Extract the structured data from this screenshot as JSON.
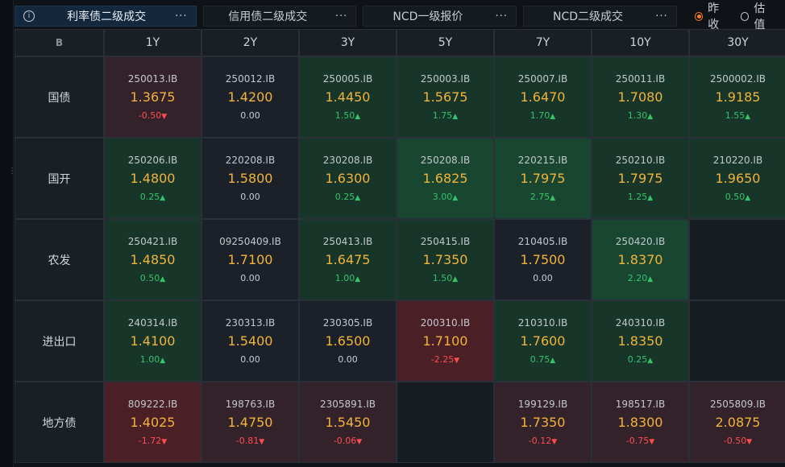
{
  "tabs": [
    {
      "label": "利率债二级成交",
      "active": true
    },
    {
      "label": "信用债二级成交",
      "active": false
    },
    {
      "label": "NCD一级报价",
      "active": false
    },
    {
      "label": "NCD二级成交",
      "active": false
    }
  ],
  "more_label": "···",
  "info_icon": "i",
  "radios": [
    {
      "label": "昨收",
      "checked": true
    },
    {
      "label": "估值",
      "checked": false
    }
  ],
  "corner_label": "B",
  "columns": [
    "1Y",
    "2Y",
    "3Y",
    "5Y",
    "7Y",
    "10Y",
    "30Y"
  ],
  "rows": [
    {
      "label": "国债",
      "cells": [
        {
          "code": "250013.IB",
          "rate": "1.3675",
          "change": "-0.50",
          "dir": "down",
          "shade": "r1"
        },
        {
          "code": "250012.IB",
          "rate": "1.4200",
          "change": "0.00",
          "dir": "flat",
          "shade": "neutral"
        },
        {
          "code": "250005.IB",
          "rate": "1.4450",
          "change": "1.50",
          "dir": "up",
          "shade": "g1"
        },
        {
          "code": "250003.IB",
          "rate": "1.5675",
          "change": "1.75",
          "dir": "up",
          "shade": "g1"
        },
        {
          "code": "250007.IB",
          "rate": "1.6470",
          "change": "1.70",
          "dir": "up",
          "shade": "g1"
        },
        {
          "code": "250011.IB",
          "rate": "1.7080",
          "change": "1.30",
          "dir": "up",
          "shade": "g1"
        },
        {
          "code": "2500002.IB",
          "rate": "1.9185",
          "change": "1.55",
          "dir": "up",
          "shade": "g1"
        }
      ]
    },
    {
      "label": "国开",
      "cells": [
        {
          "code": "250206.IB",
          "rate": "1.4800",
          "change": "0.25",
          "dir": "up",
          "shade": "g1"
        },
        {
          "code": "220208.IB",
          "rate": "1.5800",
          "change": "0.00",
          "dir": "flat",
          "shade": "neutral"
        },
        {
          "code": "230208.IB",
          "rate": "1.6300",
          "change": "0.25",
          "dir": "up",
          "shade": "g1"
        },
        {
          "code": "250208.IB",
          "rate": "1.6825",
          "change": "3.00",
          "dir": "up",
          "shade": "g2"
        },
        {
          "code": "220215.IB",
          "rate": "1.7975",
          "change": "2.75",
          "dir": "up",
          "shade": "g2"
        },
        {
          "code": "250210.IB",
          "rate": "1.7975",
          "change": "1.25",
          "dir": "up",
          "shade": "g1"
        },
        {
          "code": "210220.IB",
          "rate": "1.9650",
          "change": "0.50",
          "dir": "up",
          "shade": "g1"
        }
      ]
    },
    {
      "label": "农发",
      "cells": [
        {
          "code": "250421.IB",
          "rate": "1.4850",
          "change": "0.50",
          "dir": "up",
          "shade": "g1"
        },
        {
          "code": "09250409.IB",
          "rate": "1.7100",
          "change": "0.00",
          "dir": "flat",
          "shade": "neutral"
        },
        {
          "code": "250413.IB",
          "rate": "1.6475",
          "change": "1.00",
          "dir": "up",
          "shade": "g1"
        },
        {
          "code": "250415.IB",
          "rate": "1.7350",
          "change": "1.50",
          "dir": "up",
          "shade": "g1"
        },
        {
          "code": "210405.IB",
          "rate": "1.7500",
          "change": "0.00",
          "dir": "flat",
          "shade": "neutral"
        },
        {
          "code": "250420.IB",
          "rate": "1.8370",
          "change": "2.20",
          "dir": "up",
          "shade": "g2"
        },
        {
          "empty": true
        }
      ]
    },
    {
      "label": "进出口",
      "cells": [
        {
          "code": "240314.IB",
          "rate": "1.4100",
          "change": "1.00",
          "dir": "up",
          "shade": "g1"
        },
        {
          "code": "230313.IB",
          "rate": "1.5400",
          "change": "0.00",
          "dir": "flat",
          "shade": "neutral"
        },
        {
          "code": "230305.IB",
          "rate": "1.6500",
          "change": "0.00",
          "dir": "flat",
          "shade": "neutral"
        },
        {
          "code": "200310.IB",
          "rate": "1.7100",
          "change": "-2.25",
          "dir": "down",
          "shade": "r2"
        },
        {
          "code": "210310.IB",
          "rate": "1.7600",
          "change": "0.75",
          "dir": "up",
          "shade": "g1"
        },
        {
          "code": "240310.IB",
          "rate": "1.8350",
          "change": "0.25",
          "dir": "up",
          "shade": "g1"
        },
        {
          "empty": true
        }
      ]
    },
    {
      "label": "地方债",
      "cells": [
        {
          "code": "809222.IB",
          "rate": "1.4025",
          "change": "-1.72",
          "dir": "down",
          "shade": "r2"
        },
        {
          "code": "198763.IB",
          "rate": "1.4750",
          "change": "-0.81",
          "dir": "down",
          "shade": "r1"
        },
        {
          "code": "2305891.IB",
          "rate": "1.5450",
          "change": "-0.06",
          "dir": "down",
          "shade": "r1"
        },
        {
          "empty": true
        },
        {
          "code": "199129.IB",
          "rate": "1.7350",
          "change": "-0.12",
          "dir": "down",
          "shade": "r1"
        },
        {
          "code": "198517.IB",
          "rate": "1.8300",
          "change": "-0.75",
          "dir": "down",
          "shade": "r1"
        },
        {
          "code": "2505809.IB",
          "rate": "2.0875",
          "change": "-0.50",
          "dir": "down",
          "shade": "r1"
        }
      ]
    }
  ]
}
